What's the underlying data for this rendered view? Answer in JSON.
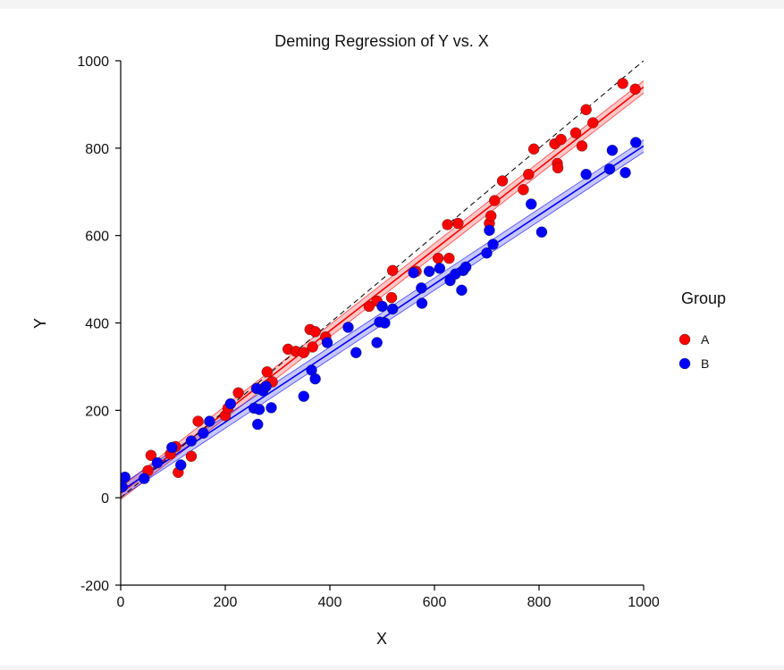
{
  "chart_data": {
    "type": "scatter",
    "title": "Deming Regression of Y vs. X",
    "xlabel": "X",
    "ylabel": "Y",
    "xlim": [
      0,
      1000
    ],
    "ylim": [
      -200,
      1000
    ],
    "xticks": [
      0,
      200,
      400,
      600,
      800,
      1000
    ],
    "yticks": [
      -200,
      0,
      200,
      400,
      600,
      800,
      1000
    ],
    "grid": false,
    "legend_title": "Group",
    "legend_position": "right",
    "identity_line": {
      "x": [
        0,
        1000
      ],
      "y": [
        0,
        1000
      ]
    },
    "series": [
      {
        "name": "A",
        "color": "#ff0000",
        "fit": {
          "x": [
            0,
            1000
          ],
          "y": [
            10,
            940
          ],
          "band": 14
        },
        "points": [
          [
            52,
            62
          ],
          [
            58,
            97
          ],
          [
            95,
            100
          ],
          [
            105,
            117
          ],
          [
            110,
            58
          ],
          [
            135,
            95
          ],
          [
            148,
            175
          ],
          [
            200,
            188
          ],
          [
            205,
            205
          ],
          [
            225,
            240
          ],
          [
            260,
            250
          ],
          [
            280,
            288
          ],
          [
            290,
            265
          ],
          [
            320,
            340
          ],
          [
            335,
            335
          ],
          [
            350,
            332
          ],
          [
            362,
            385
          ],
          [
            367,
            345
          ],
          [
            372,
            380
          ],
          [
            392,
            368
          ],
          [
            475,
            438
          ],
          [
            490,
            450
          ],
          [
            520,
            520
          ],
          [
            518,
            458
          ],
          [
            565,
            518
          ],
          [
            607,
            548
          ],
          [
            625,
            625
          ],
          [
            628,
            548
          ],
          [
            645,
            628
          ],
          [
            705,
            628
          ],
          [
            708,
            645
          ],
          [
            715,
            680
          ],
          [
            730,
            725
          ],
          [
            770,
            705
          ],
          [
            780,
            740
          ],
          [
            790,
            798
          ],
          [
            830,
            810
          ],
          [
            835,
            765
          ],
          [
            836,
            755
          ],
          [
            842,
            820
          ],
          [
            870,
            835
          ],
          [
            882,
            805
          ],
          [
            890,
            888
          ],
          [
            903,
            858
          ],
          [
            960,
            948
          ],
          [
            984,
            935
          ]
        ]
      },
      {
        "name": "B",
        "color": "#0000ff",
        "fit": {
          "x": [
            0,
            1000
          ],
          "y": [
            15,
            805
          ],
          "band": 14
        },
        "points": [
          [
            3,
            25
          ],
          [
            8,
            47
          ],
          [
            45,
            44
          ],
          [
            70,
            80
          ],
          [
            98,
            115
          ],
          [
            115,
            75
          ],
          [
            135,
            130
          ],
          [
            158,
            148
          ],
          [
            170,
            175
          ],
          [
            210,
            215
          ],
          [
            255,
            205
          ],
          [
            260,
            250
          ],
          [
            262,
            168
          ],
          [
            265,
            202
          ],
          [
            272,
            245
          ],
          [
            278,
            255
          ],
          [
            288,
            206
          ],
          [
            350,
            232
          ],
          [
            365,
            292
          ],
          [
            372,
            272
          ],
          [
            395,
            355
          ],
          [
            435,
            390
          ],
          [
            450,
            332
          ],
          [
            490,
            355
          ],
          [
            495,
            402
          ],
          [
            500,
            438
          ],
          [
            505,
            400
          ],
          [
            520,
            432
          ],
          [
            560,
            515
          ],
          [
            575,
            480
          ],
          [
            576,
            445
          ],
          [
            590,
            518
          ],
          [
            610,
            525
          ],
          [
            630,
            497
          ],
          [
            640,
            512
          ],
          [
            652,
            475
          ],
          [
            655,
            520
          ],
          [
            660,
            528
          ],
          [
            700,
            560
          ],
          [
            705,
            612
          ],
          [
            712,
            580
          ],
          [
            785,
            672
          ],
          [
            805,
            608
          ],
          [
            890,
            740
          ],
          [
            935,
            752
          ],
          [
            940,
            795
          ],
          [
            965,
            744
          ],
          [
            985,
            813
          ]
        ]
      }
    ]
  }
}
